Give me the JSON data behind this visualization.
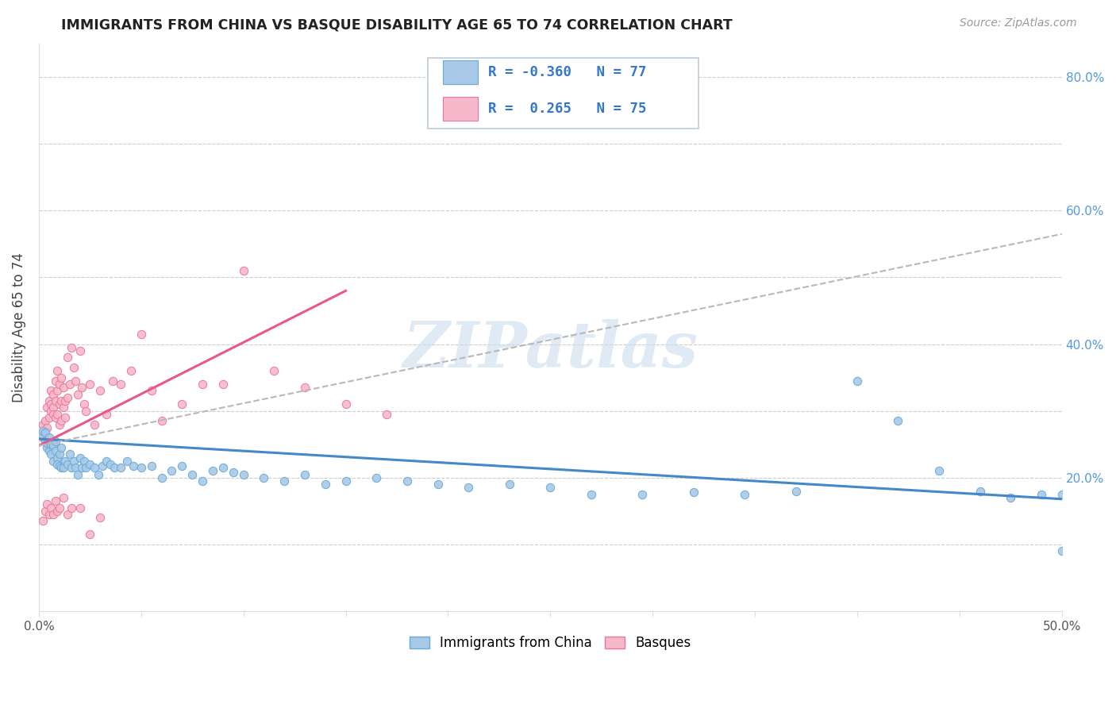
{
  "title": "IMMIGRANTS FROM CHINA VS BASQUE DISABILITY AGE 65 TO 74 CORRELATION CHART",
  "source": "Source: ZipAtlas.com",
  "ylabel": "Disability Age 65 to 74",
  "legend_label_blue": "Immigrants from China",
  "legend_label_pink": "Basques",
  "R_blue": -0.36,
  "N_blue": 77,
  "R_pink": 0.265,
  "N_pink": 75,
  "xlim": [
    0.0,
    0.5
  ],
  "ylim": [
    0.0,
    0.85
  ],
  "watermark": "ZIPatlas",
  "blue_color": "#a8c8e8",
  "blue_edge": "#6aaad4",
  "pink_color": "#f8b8cc",
  "pink_edge": "#e87898",
  "blue_line_color": "#4488cc",
  "pink_line_color": "#e85888",
  "dashed_line_color": "#b8b8b8",
  "blue_scatter_x": [
    0.001,
    0.002,
    0.003,
    0.003,
    0.004,
    0.004,
    0.005,
    0.005,
    0.006,
    0.006,
    0.007,
    0.007,
    0.008,
    0.008,
    0.009,
    0.009,
    0.01,
    0.01,
    0.011,
    0.011,
    0.012,
    0.013,
    0.014,
    0.015,
    0.016,
    0.017,
    0.018,
    0.019,
    0.02,
    0.021,
    0.022,
    0.023,
    0.025,
    0.027,
    0.029,
    0.031,
    0.033,
    0.035,
    0.037,
    0.04,
    0.043,
    0.046,
    0.05,
    0.055,
    0.06,
    0.065,
    0.07,
    0.075,
    0.08,
    0.085,
    0.09,
    0.095,
    0.1,
    0.11,
    0.12,
    0.13,
    0.14,
    0.15,
    0.165,
    0.18,
    0.195,
    0.21,
    0.23,
    0.25,
    0.27,
    0.295,
    0.32,
    0.345,
    0.37,
    0.4,
    0.42,
    0.44,
    0.46,
    0.475,
    0.49,
    0.5,
    0.5
  ],
  "blue_scatter_y": [
    0.265,
    0.27,
    0.255,
    0.268,
    0.245,
    0.252,
    0.26,
    0.24,
    0.25,
    0.235,
    0.248,
    0.225,
    0.24,
    0.255,
    0.23,
    0.22,
    0.235,
    0.218,
    0.245,
    0.215,
    0.215,
    0.225,
    0.22,
    0.235,
    0.215,
    0.225,
    0.215,
    0.205,
    0.23,
    0.215,
    0.225,
    0.215,
    0.22,
    0.215,
    0.205,
    0.218,
    0.225,
    0.22,
    0.215,
    0.215,
    0.225,
    0.218,
    0.215,
    0.218,
    0.2,
    0.21,
    0.218,
    0.205,
    0.195,
    0.21,
    0.215,
    0.208,
    0.205,
    0.2,
    0.195,
    0.205,
    0.19,
    0.195,
    0.2,
    0.195,
    0.19,
    0.185,
    0.19,
    0.185,
    0.175,
    0.175,
    0.178,
    0.175,
    0.18,
    0.345,
    0.285,
    0.21,
    0.18,
    0.17,
    0.175,
    0.175,
    0.09
  ],
  "pink_scatter_x": [
    0.001,
    0.002,
    0.002,
    0.003,
    0.003,
    0.004,
    0.004,
    0.005,
    0.005,
    0.006,
    0.006,
    0.006,
    0.007,
    0.007,
    0.007,
    0.008,
    0.008,
    0.008,
    0.009,
    0.009,
    0.009,
    0.01,
    0.01,
    0.01,
    0.011,
    0.011,
    0.011,
    0.012,
    0.012,
    0.013,
    0.013,
    0.014,
    0.014,
    0.015,
    0.016,
    0.017,
    0.018,
    0.019,
    0.02,
    0.021,
    0.022,
    0.023,
    0.025,
    0.027,
    0.03,
    0.033,
    0.036,
    0.04,
    0.045,
    0.05,
    0.055,
    0.06,
    0.07,
    0.08,
    0.09,
    0.1,
    0.115,
    0.13,
    0.15,
    0.17,
    0.002,
    0.003,
    0.004,
    0.005,
    0.006,
    0.007,
    0.008,
    0.009,
    0.01,
    0.012,
    0.014,
    0.016,
    0.02,
    0.025,
    0.03
  ],
  "pink_scatter_y": [
    0.265,
    0.28,
    0.26,
    0.285,
    0.27,
    0.305,
    0.275,
    0.315,
    0.29,
    0.31,
    0.3,
    0.33,
    0.305,
    0.325,
    0.295,
    0.345,
    0.315,
    0.29,
    0.36,
    0.33,
    0.295,
    0.34,
    0.31,
    0.28,
    0.35,
    0.315,
    0.285,
    0.305,
    0.335,
    0.315,
    0.29,
    0.38,
    0.32,
    0.34,
    0.395,
    0.365,
    0.345,
    0.325,
    0.39,
    0.335,
    0.31,
    0.3,
    0.34,
    0.28,
    0.33,
    0.295,
    0.345,
    0.34,
    0.36,
    0.415,
    0.33,
    0.285,
    0.31,
    0.34,
    0.34,
    0.51,
    0.36,
    0.335,
    0.31,
    0.295,
    0.135,
    0.15,
    0.16,
    0.145,
    0.155,
    0.145,
    0.165,
    0.15,
    0.155,
    0.17,
    0.145,
    0.155,
    0.155,
    0.115,
    0.14
  ],
  "blue_trend_x": [
    0.0,
    0.5
  ],
  "blue_trend_y": [
    0.258,
    0.168
  ],
  "pink_trend_x": [
    0.0,
    0.15
  ],
  "pink_trend_y": [
    0.248,
    0.48
  ],
  "dashed_trend_x": [
    0.0,
    0.5
  ],
  "dashed_trend_y": [
    0.248,
    0.565
  ]
}
